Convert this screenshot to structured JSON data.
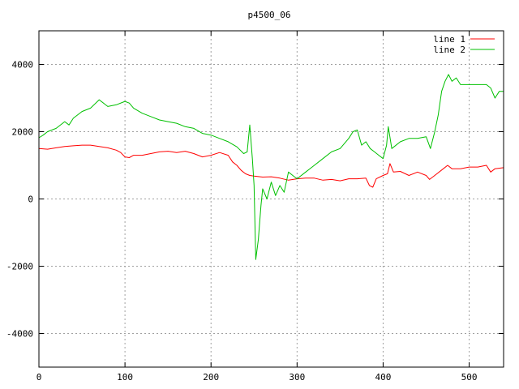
{
  "chart_data": {
    "type": "line",
    "title": "p4500_06",
    "xlabel": "",
    "ylabel": "",
    "xlim": [
      0,
      540
    ],
    "ylim": [
      -5000,
      5000
    ],
    "xticks": [
      0,
      100,
      200,
      300,
      400,
      500
    ],
    "yticks": [
      -4000,
      -2000,
      0,
      2000,
      4000
    ],
    "grid": true,
    "legend_position": "top-right",
    "series": [
      {
        "name": "line 1",
        "color": "#ff0000",
        "points": [
          [
            0,
            1500
          ],
          [
            10,
            1480
          ],
          [
            20,
            1520
          ],
          [
            30,
            1560
          ],
          [
            40,
            1580
          ],
          [
            50,
            1600
          ],
          [
            60,
            1600
          ],
          [
            70,
            1560
          ],
          [
            80,
            1520
          ],
          [
            90,
            1450
          ],
          [
            95,
            1380
          ],
          [
            100,
            1250
          ],
          [
            105,
            1230
          ],
          [
            110,
            1300
          ],
          [
            120,
            1300
          ],
          [
            130,
            1350
          ],
          [
            140,
            1400
          ],
          [
            150,
            1420
          ],
          [
            160,
            1380
          ],
          [
            170,
            1420
          ],
          [
            180,
            1350
          ],
          [
            190,
            1250
          ],
          [
            200,
            1300
          ],
          [
            210,
            1380
          ],
          [
            220,
            1300
          ],
          [
            225,
            1100
          ],
          [
            230,
            1000
          ],
          [
            235,
            850
          ],
          [
            240,
            750
          ],
          [
            245,
            700
          ],
          [
            250,
            680
          ],
          [
            260,
            650
          ],
          [
            270,
            660
          ],
          [
            280,
            620
          ],
          [
            290,
            560
          ],
          [
            300,
            600
          ],
          [
            310,
            620
          ],
          [
            320,
            620
          ],
          [
            330,
            560
          ],
          [
            340,
            580
          ],
          [
            350,
            540
          ],
          [
            360,
            600
          ],
          [
            370,
            600
          ],
          [
            380,
            620
          ],
          [
            384,
            400
          ],
          [
            388,
            350
          ],
          [
            392,
            600
          ],
          [
            400,
            700
          ],
          [
            405,
            750
          ],
          [
            408,
            1050
          ],
          [
            412,
            800
          ],
          [
            420,
            820
          ],
          [
            430,
            700
          ],
          [
            440,
            800
          ],
          [
            450,
            700
          ],
          [
            454,
            580
          ],
          [
            460,
            700
          ],
          [
            470,
            900
          ],
          [
            475,
            1000
          ],
          [
            480,
            900
          ],
          [
            490,
            900
          ],
          [
            500,
            950
          ],
          [
            510,
            950
          ],
          [
            520,
            1000
          ],
          [
            525,
            800
          ],
          [
            530,
            900
          ],
          [
            540,
            930
          ]
        ]
      },
      {
        "name": "line 2",
        "color": "#00c000",
        "points": [
          [
            0,
            1820
          ],
          [
            5,
            1900
          ],
          [
            10,
            2000
          ],
          [
            20,
            2100
          ],
          [
            30,
            2300
          ],
          [
            35,
            2200
          ],
          [
            40,
            2400
          ],
          [
            50,
            2600
          ],
          [
            60,
            2700
          ],
          [
            70,
            2950
          ],
          [
            80,
            2750
          ],
          [
            90,
            2800
          ],
          [
            100,
            2900
          ],
          [
            105,
            2850
          ],
          [
            110,
            2700
          ],
          [
            120,
            2550
          ],
          [
            130,
            2450
          ],
          [
            140,
            2350
          ],
          [
            150,
            2300
          ],
          [
            160,
            2250
          ],
          [
            170,
            2150
          ],
          [
            180,
            2100
          ],
          [
            190,
            1950
          ],
          [
            200,
            1900
          ],
          [
            210,
            1800
          ],
          [
            220,
            1700
          ],
          [
            230,
            1550
          ],
          [
            238,
            1350
          ],
          [
            242,
            1400
          ],
          [
            245,
            2200
          ],
          [
            248,
            1200
          ],
          [
            250,
            400
          ],
          [
            252,
            -1800
          ],
          [
            255,
            -1200
          ],
          [
            258,
            -200
          ],
          [
            260,
            300
          ],
          [
            265,
            0
          ],
          [
            270,
            500
          ],
          [
            275,
            100
          ],
          [
            280,
            400
          ],
          [
            285,
            200
          ],
          [
            290,
            800
          ],
          [
            295,
            700
          ],
          [
            300,
            600
          ],
          [
            310,
            800
          ],
          [
            320,
            1000
          ],
          [
            330,
            1200
          ],
          [
            340,
            1400
          ],
          [
            350,
            1500
          ],
          [
            360,
            1800
          ],
          [
            365,
            2000
          ],
          [
            370,
            2050
          ],
          [
            375,
            1600
          ],
          [
            380,
            1700
          ],
          [
            385,
            1500
          ],
          [
            390,
            1400
          ],
          [
            395,
            1300
          ],
          [
            400,
            1200
          ],
          [
            404,
            1600
          ],
          [
            406,
            2150
          ],
          [
            410,
            1500
          ],
          [
            420,
            1700
          ],
          [
            430,
            1800
          ],
          [
            440,
            1800
          ],
          [
            450,
            1850
          ],
          [
            455,
            1500
          ],
          [
            460,
            2000
          ],
          [
            464,
            2500
          ],
          [
            468,
            3200
          ],
          [
            472,
            3500
          ],
          [
            476,
            3700
          ],
          [
            480,
            3500
          ],
          [
            485,
            3600
          ],
          [
            490,
            3400
          ],
          [
            500,
            3400
          ],
          [
            510,
            3400
          ],
          [
            520,
            3400
          ],
          [
            525,
            3300
          ],
          [
            530,
            3000
          ],
          [
            535,
            3200
          ],
          [
            540,
            3200
          ]
        ]
      }
    ]
  }
}
